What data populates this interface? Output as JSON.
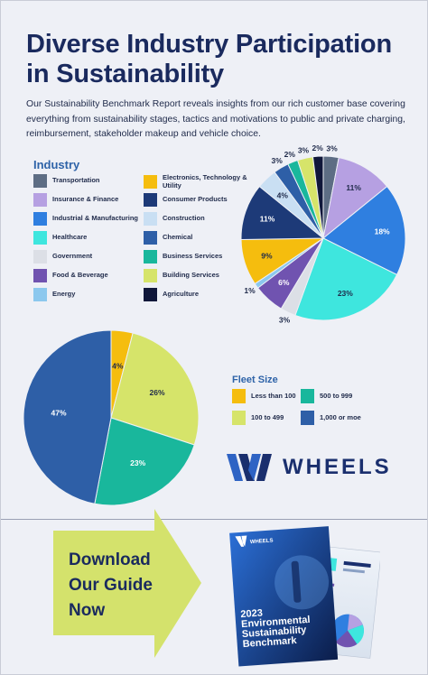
{
  "header": {
    "title": "Diverse Industry Participation in Sustainability",
    "intro": "Our Sustainability Benchmark Report reveals insights from our rich customer base covering everything from sustainability stages, tactics and motivations to public and private charging, reimbursement, stakeholder makeup and vehicle choice."
  },
  "chart_data": [
    {
      "type": "pie",
      "legend_title": "Industry",
      "legend_position": "left",
      "categories": [
        "Transportation",
        "Insurance & Finance",
        "Industrial & Manufacturing",
        "Healthcare",
        "Government",
        "Food & Beverage",
        "Energy",
        "Electronics, Technology & Utility",
        "Consumer Products",
        "Construction",
        "Chemical",
        "Business Services",
        "Building Services",
        "Agriculture"
      ],
      "colors": [
        "#5d6d84",
        "#b6a0e2",
        "#2f7fe0",
        "#3ee6de",
        "#dcdfe6",
        "#7053b0",
        "#8cc8ee",
        "#f5bd0e",
        "#1d3a78",
        "#c9dff3",
        "#2e5fa7",
        "#19b79c",
        "#d6e46a",
        "#10173a"
      ],
      "slices": [
        {
          "category": "Transportation",
          "value": 3,
          "label": "3%"
        },
        {
          "category": "Insurance & Finance",
          "value": 11,
          "label": "11%"
        },
        {
          "category": "Industrial & Manufacturing",
          "value": 18,
          "label": "18%"
        },
        {
          "category": "Healthcare",
          "value": 23,
          "label": "23%"
        },
        {
          "category": "Government",
          "value": 3,
          "label": "3%"
        },
        {
          "category": "Food & Beverage",
          "value": 6,
          "label": "6%"
        },
        {
          "category": "Energy",
          "value": 1,
          "label": "1%"
        },
        {
          "category": "Electronics, Technology & Utility",
          "value": 9,
          "label": "9%"
        },
        {
          "category": "Consumer Products",
          "value": 11,
          "label": "11%"
        },
        {
          "category": "Construction",
          "value": 4,
          "label": "4%"
        },
        {
          "category": "Chemical",
          "value": 3,
          "label": "3%"
        },
        {
          "category": "Business Services",
          "value": 2,
          "label": "2%"
        },
        {
          "category": "Building Services",
          "value": 3,
          "label": "3%"
        },
        {
          "category": "Agriculture",
          "value": 2,
          "label": "2%"
        }
      ]
    },
    {
      "type": "pie",
      "legend_title": "Fleet Size",
      "legend_position": "right",
      "categories": [
        "Less than 100",
        "100 to 499",
        "500 to 999",
        "1,000 or moe"
      ],
      "colors": [
        "#f5bd0e",
        "#d6e46a",
        "#19b79c",
        "#2e5fa7"
      ],
      "slices": [
        {
          "category": "Less than 100",
          "value": 4,
          "label": "4%"
        },
        {
          "category": "100 to 499",
          "value": 26,
          "label": "26%"
        },
        {
          "category": "500 to 999",
          "value": 23,
          "label": "23%"
        },
        {
          "category": "1,000 or moe",
          "value": 47,
          "label": "47%"
        }
      ]
    }
  ],
  "industry_legend": [
    {
      "label": "Transportation",
      "color": "#5d6d84"
    },
    {
      "label": "Insurance & Finance",
      "color": "#b6a0e2"
    },
    {
      "label": "Industrial & Manufacturing",
      "color": "#2f7fe0"
    },
    {
      "label": "Healthcare",
      "color": "#3ee6de"
    },
    {
      "label": "Government",
      "color": "#dcdfe6"
    },
    {
      "label": "Food & Beverage",
      "color": "#7053b0"
    },
    {
      "label": "Energy",
      "color": "#8cc8ee"
    },
    {
      "label": "Electronics, Technology & Utility",
      "color": "#f5bd0e"
    },
    {
      "label": "Consumer Products",
      "color": "#1d3a78"
    },
    {
      "label": "Construction",
      "color": "#c9dff3"
    },
    {
      "label": "Chemical",
      "color": "#2e5fa7"
    },
    {
      "label": "Business Services",
      "color": "#19b79c"
    },
    {
      "label": "Building Services",
      "color": "#d6e46a"
    },
    {
      "label": "Agriculture",
      "color": "#10173a"
    }
  ],
  "fleet_legend": [
    {
      "label": "Less than 100",
      "color": "#f5bd0e"
    },
    {
      "label": "500 to 999",
      "color": "#19b79c"
    },
    {
      "label": "100 to 499",
      "color": "#d6e46a"
    },
    {
      "label": "1,000 or moe",
      "color": "#2e5fa7"
    }
  ],
  "brand": {
    "name": "WHEELS",
    "logo_icon": "wheels-w-logo-icon",
    "color": "#1a2f6e"
  },
  "cta": {
    "text": "Download Our Guide Now",
    "arrow_color": "#d4e26c"
  },
  "guide_cover": {
    "brand_name": "WHEELS",
    "title": "2023 Environmental Sustainability Benchmark"
  }
}
